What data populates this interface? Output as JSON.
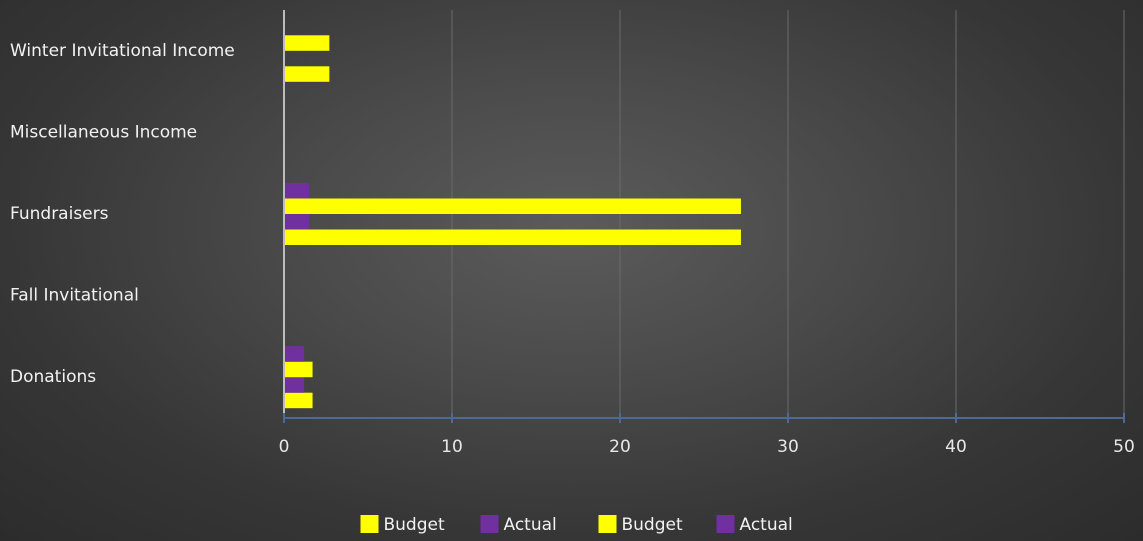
{
  "chart_data": {
    "type": "bar",
    "orientation": "horizontal",
    "title": "",
    "xlabel": "",
    "ylabel": "",
    "categories": [
      "Donations",
      "Fall Invitational",
      "Fundraisers",
      "Miscellaneous Income",
      "Winter Invitational Income"
    ],
    "xlim": [
      0,
      50
    ],
    "x_ticks": [
      "0",
      "10",
      "20",
      "30",
      "40",
      "50"
    ],
    "grid": true,
    "legend_position": "bottom",
    "series": [
      {
        "name": "Budget",
        "color": "#ffff00",
        "values": [
          1.7,
          0,
          27.2,
          0,
          2.7
        ]
      },
      {
        "name": "Actual",
        "color": "#7030a0",
        "values": [
          1.2,
          0,
          1.5,
          0,
          0
        ]
      },
      {
        "name": "Budget",
        "color": "#ffff00",
        "values": [
          1.7,
          0,
          27.2,
          0,
          2.7
        ]
      },
      {
        "name": "Actual",
        "color": "#7030a0",
        "values": [
          1.2,
          0,
          1.5,
          0,
          0
        ]
      }
    ]
  }
}
